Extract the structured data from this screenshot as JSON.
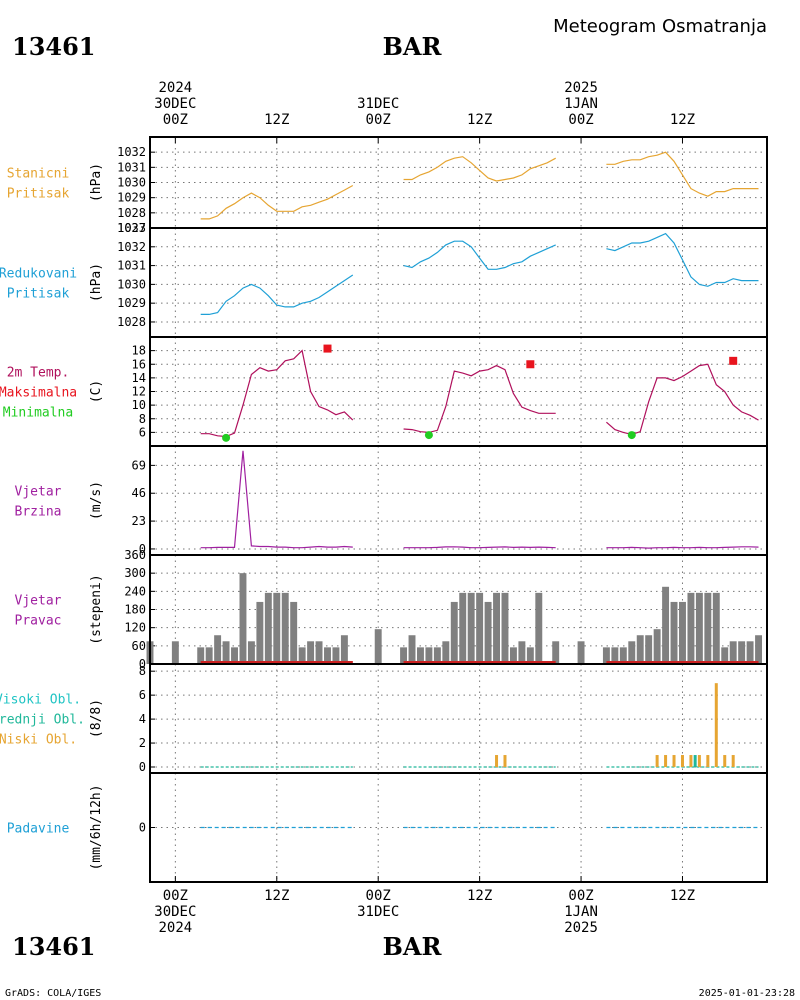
{
  "header": {
    "meteogram_title": "Meteogram Osmatranja",
    "station_id": "13461",
    "station_name": "BAR"
  },
  "time_axis": {
    "labels": [
      {
        "hour": 0,
        "lines": [
          "2024",
          "30DEC",
          "00Z"
        ]
      },
      {
        "hour": 12,
        "lines": [
          "",
          "",
          "12Z"
        ]
      },
      {
        "hour": 24,
        "lines": [
          "",
          "31DEC",
          "00Z"
        ]
      },
      {
        "hour": 36,
        "lines": [
          "",
          "",
          "12Z"
        ]
      },
      {
        "hour": 48,
        "lines": [
          "2025",
          "1JAN",
          "00Z"
        ]
      },
      {
        "hour": 60,
        "lines": [
          "",
          "",
          "12Z"
        ]
      }
    ],
    "bottom_labels": [
      {
        "hour": 0,
        "lines": [
          "00Z",
          "30DEC",
          "2024"
        ]
      },
      {
        "hour": 12,
        "lines": [
          "12Z",
          "",
          ""
        ]
      },
      {
        "hour": 24,
        "lines": [
          "00Z",
          "31DEC",
          ""
        ]
      },
      {
        "hour": 36,
        "lines": [
          "12Z",
          "",
          ""
        ]
      },
      {
        "hour": 48,
        "lines": [
          "00Z",
          "1JAN",
          "2025"
        ]
      },
      {
        "hour": 60,
        "lines": [
          "12Z",
          "",
          ""
        ]
      }
    ],
    "range_hours": [
      -3,
      70
    ]
  },
  "footer": {
    "left": "GrADS: COLA/IGES",
    "right": "2025-01-01-23:28"
  },
  "colors": {
    "station_pressure": "#e6a532",
    "reduced_pressure": "#1fa0d6",
    "temperature": "#b0105c",
    "max_temp": "#e8141e",
    "min_temp": "#22cc22",
    "wind": "#a020a0",
    "direction_bar": "#808080",
    "direction_base": "#cc2222",
    "clouds_high": "#20c4c4",
    "clouds_mid": "#20b89a",
    "clouds_low": "#e6a532",
    "precip": "#1fa0d6"
  },
  "chart_data": [
    {
      "type": "line",
      "panel": "station_pressure",
      "labels": [
        "Stanicni",
        "Pritisak"
      ],
      "ylabel": "(hPa)",
      "ylim": [
        1027,
        1033
      ],
      "yticks": [
        1027,
        1028,
        1029,
        1030,
        1031,
        1032
      ],
      "series": [
        {
          "x": [
            3,
            4,
            5,
            6,
            7,
            8,
            9,
            10,
            11,
            12,
            13,
            14,
            15,
            16,
            17,
            18,
            19,
            20,
            21
          ],
          "values": [
            1027.6,
            1027.6,
            1027.8,
            1028.3,
            1028.6,
            1029.0,
            1029.3,
            1029.0,
            1028.5,
            1028.1,
            1028.1,
            1028.1,
            1028.4,
            1028.5,
            1028.7,
            1028.9,
            1029.2,
            1029.5,
            1029.8
          ]
        },
        {
          "x": [
            27,
            28,
            29,
            30,
            31,
            32,
            33,
            34,
            35,
            36,
            37,
            38,
            39,
            40,
            41,
            42,
            43,
            44,
            45
          ],
          "values": [
            1030.2,
            1030.2,
            1030.5,
            1030.7,
            1031.0,
            1031.4,
            1031.6,
            1031.7,
            1031.3,
            1030.8,
            1030.3,
            1030.1,
            1030.2,
            1030.3,
            1030.5,
            1030.9,
            1031.1,
            1031.3,
            1031.6
          ]
        },
        {
          "x": [
            51,
            52,
            53,
            54,
            55,
            56,
            57,
            58,
            59,
            60,
            61,
            62,
            63,
            64,
            65,
            66,
            67,
            68,
            69
          ],
          "values": [
            1031.2,
            1031.2,
            1031.4,
            1031.5,
            1031.5,
            1031.7,
            1031.8,
            1032.0,
            1031.4,
            1030.5,
            1029.6,
            1029.3,
            1029.1,
            1029.4,
            1029.4,
            1029.6,
            1029.6,
            1029.6,
            1029.6
          ]
        }
      ]
    },
    {
      "type": "line",
      "panel": "reduced_pressure",
      "labels": [
        "Redukovani",
        "Pritisak"
      ],
      "ylabel": "(hPa)",
      "ylim": [
        1027.2,
        1033
      ],
      "yticks": [
        1028,
        1029,
        1030,
        1031,
        1032,
        1033
      ],
      "series": [
        {
          "x": [
            3,
            4,
            5,
            6,
            7,
            8,
            9,
            10,
            11,
            12,
            13,
            14,
            15,
            16,
            17,
            18,
            19,
            20,
            21
          ],
          "values": [
            1028.4,
            1028.4,
            1028.5,
            1029.1,
            1029.4,
            1029.8,
            1030.0,
            1029.8,
            1029.4,
            1028.9,
            1028.8,
            1028.8,
            1029.0,
            1029.1,
            1029.3,
            1029.6,
            1029.9,
            1030.2,
            1030.5
          ]
        },
        {
          "x": [
            27,
            28,
            29,
            30,
            31,
            32,
            33,
            34,
            35,
            36,
            37,
            38,
            39,
            40,
            41,
            42,
            43,
            44,
            45
          ],
          "values": [
            1031.0,
            1030.9,
            1031.2,
            1031.4,
            1031.7,
            1032.1,
            1032.3,
            1032.3,
            1032.0,
            1031.4,
            1030.8,
            1030.8,
            1030.9,
            1031.1,
            1031.2,
            1031.5,
            1031.7,
            1031.9,
            1032.1
          ]
        },
        {
          "x": [
            51,
            52,
            53,
            54,
            55,
            56,
            57,
            58,
            59,
            60,
            61,
            62,
            63,
            64,
            65,
            66,
            67,
            68,
            69
          ],
          "values": [
            1031.9,
            1031.8,
            1032.0,
            1032.2,
            1032.2,
            1032.3,
            1032.5,
            1032.7,
            1032.2,
            1031.3,
            1030.4,
            1030.0,
            1029.9,
            1030.1,
            1030.1,
            1030.3,
            1030.2,
            1030.2,
            1030.2
          ]
        }
      ]
    },
    {
      "type": "line",
      "panel": "temperature",
      "labels": [
        "2m Temp.",
        "Maksimalna",
        "Minimalna"
      ],
      "ylabel": "(C)",
      "ylim": [
        4,
        20
      ],
      "yticks": [
        6,
        8,
        10,
        12,
        14,
        16,
        18
      ],
      "series": [
        {
          "x": [
            3,
            4,
            5,
            6,
            7,
            8,
            9,
            10,
            11,
            12,
            13,
            14,
            15,
            16,
            17,
            18,
            19,
            20,
            21
          ],
          "values": [
            5.8,
            5.8,
            5.5,
            5.4,
            5.9,
            10.0,
            14.5,
            15.5,
            15.0,
            15.2,
            16.5,
            16.8,
            18.0,
            12.0,
            9.8,
            9.3,
            8.6,
            9.0,
            7.8
          ]
        },
        {
          "x": [
            27,
            28,
            29,
            30,
            31,
            32,
            33,
            34,
            35,
            36,
            37,
            38,
            39,
            40,
            41,
            42,
            43,
            44,
            45
          ],
          "values": [
            6.5,
            6.4,
            6.1,
            6.0,
            6.3,
            9.8,
            15.0,
            14.7,
            14.3,
            15.0,
            15.2,
            15.8,
            15.2,
            11.7,
            9.7,
            9.2,
            8.8,
            8.8,
            8.8
          ]
        },
        {
          "x": [
            51,
            52,
            53,
            54,
            55,
            56,
            57,
            58,
            59,
            60,
            61,
            62,
            63,
            64,
            65,
            66,
            67,
            68,
            69
          ],
          "values": [
            7.5,
            6.4,
            6.0,
            5.7,
            6.1,
            10.5,
            14.0,
            14.0,
            13.6,
            14.2,
            15.0,
            15.8,
            16.0,
            13.0,
            12.0,
            10.0,
            9.0,
            8.5,
            7.8
          ]
        }
      ],
      "max_points": [
        {
          "x": 18,
          "value": 18.3
        },
        {
          "x": 42,
          "value": 16.0
        },
        {
          "x": 66,
          "value": 16.5
        }
      ],
      "min_points": [
        {
          "x": 6,
          "value": 5.2
        },
        {
          "x": 30,
          "value": 5.6
        },
        {
          "x": 54,
          "value": 5.6
        }
      ]
    },
    {
      "type": "line",
      "panel": "wind_speed",
      "labels": [
        "Vjetar",
        "Brzina"
      ],
      "ylabel": "(m/s)",
      "ylim": [
        -5,
        85
      ],
      "yticks": [
        0,
        23,
        46,
        69
      ],
      "series": [
        {
          "x": [
            3,
            4,
            5,
            6,
            7,
            8,
            9,
            10,
            11,
            12,
            13,
            14,
            15,
            16,
            17,
            18,
            19,
            20,
            21
          ],
          "values": [
            1.0,
            1.0,
            1.3,
            1.3,
            1.3,
            81.0,
            2.5,
            2.0,
            2.0,
            1.5,
            1.5,
            1.0,
            1.0,
            1.5,
            2.0,
            1.5,
            1.5,
            2.0,
            1.5
          ]
        },
        {
          "x": [
            27,
            28,
            29,
            30,
            31,
            32,
            33,
            34,
            35,
            36,
            37,
            38,
            39,
            40,
            41,
            42,
            43,
            44,
            45
          ],
          "values": [
            1.0,
            1.0,
            1.0,
            1.0,
            1.3,
            1.7,
            1.8,
            1.5,
            1.0,
            1.0,
            1.3,
            1.5,
            1.7,
            1.3,
            1.5,
            1.3,
            1.5,
            1.3,
            1.0
          ]
        },
        {
          "x": [
            51,
            52,
            53,
            54,
            55,
            56,
            57,
            58,
            59,
            60,
            61,
            62,
            63,
            64,
            65,
            66,
            67,
            68,
            69
          ],
          "values": [
            1.0,
            1.0,
            1.0,
            1.3,
            1.0,
            0.7,
            1.0,
            1.0,
            1.3,
            1.0,
            1.0,
            1.3,
            1.0,
            1.0,
            1.3,
            1.5,
            1.8,
            1.8,
            1.5
          ]
        }
      ]
    },
    {
      "type": "bar",
      "panel": "wind_direction",
      "labels": [
        "Vjetar",
        "Pravac"
      ],
      "ylabel": "(stepeni)",
      "ylim": [
        0,
        360
      ],
      "yticks": [
        0,
        60,
        120,
        180,
        240,
        300,
        360
      ],
      "x": [
        -3,
        0,
        3,
        4,
        5,
        6,
        7,
        8,
        9,
        10,
        11,
        12,
        13,
        14,
        15,
        16,
        17,
        18,
        19,
        20,
        21,
        24,
        27,
        28,
        29,
        30,
        31,
        32,
        33,
        34,
        35,
        36,
        37,
        38,
        39,
        40,
        41,
        42,
        43,
        44,
        45,
        47,
        48,
        51,
        52,
        53,
        54,
        55,
        56,
        57,
        58,
        59,
        60,
        61,
        62,
        63,
        64,
        65,
        66,
        67,
        68,
        69
      ],
      "values": [
        75,
        75,
        55,
        55,
        95,
        75,
        55,
        300,
        75,
        205,
        235,
        235,
        235,
        205,
        55,
        75,
        75,
        55,
        55,
        95,
        0,
        115,
        55,
        95,
        55,
        55,
        55,
        75,
        205,
        235,
        235,
        235,
        205,
        235,
        235,
        55,
        75,
        55,
        235,
        0,
        75,
        0,
        75,
        55,
        55,
        55,
        75,
        95,
        95,
        115,
        255,
        205,
        205,
        235,
        235,
        235,
        235,
        55,
        75,
        75,
        75,
        95
      ]
    },
    {
      "type": "bar",
      "panel": "clouds",
      "labels": [
        "Visoki Obl.",
        "Srednji Obl.",
        "Niski Obl."
      ],
      "ylabel": "(8/8)",
      "ylim": [
        -0.5,
        8.6
      ],
      "yticks": [
        0,
        2,
        4,
        6,
        8
      ],
      "series": [
        {
          "name": "Niski Obl.",
          "x": [
            38,
            39,
            57,
            58,
            59,
            60,
            61,
            62,
            63,
            64,
            65,
            66
          ],
          "values": [
            1,
            1,
            1,
            1,
            1,
            1,
            1,
            1,
            1,
            7,
            1,
            1
          ]
        },
        {
          "name": "Srednji Obl.",
          "x": [
            61.5
          ],
          "values": [
            1
          ]
        }
      ]
    },
    {
      "type": "line",
      "panel": "precipitation",
      "labels": [
        "Padavine"
      ],
      "ylabel": "(mm/6h/12h)",
      "ylim": [
        -3,
        3
      ],
      "yticks": [
        0
      ],
      "series": [
        {
          "x": [
            3,
            21
          ],
          "values": [
            0,
            0
          ]
        },
        {
          "x": [
            27,
            45
          ],
          "values": [
            0,
            0
          ]
        },
        {
          "x": [
            51,
            69
          ],
          "values": [
            0,
            0
          ]
        }
      ]
    }
  ]
}
